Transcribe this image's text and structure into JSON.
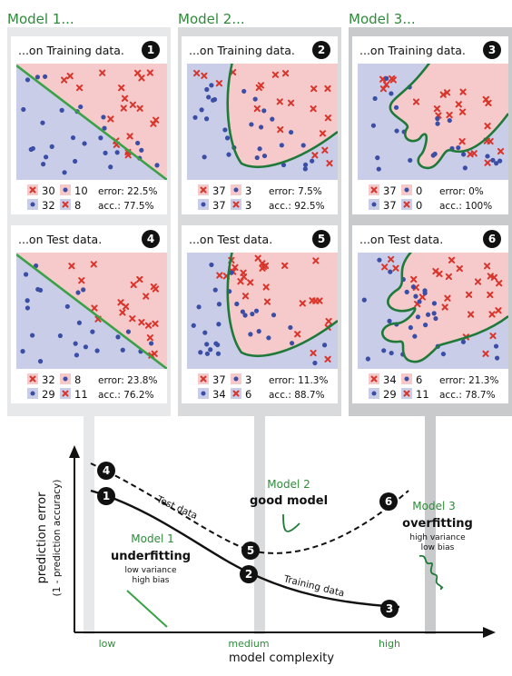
{
  "colors": {
    "green_title": "#2e8b3a",
    "green_line": "#3aa245",
    "dark_green": "#1f7a3a",
    "red": "#d8352b",
    "blue": "#3b4ea6",
    "pink_bg": "#f6c9cb",
    "blue_bg": "#c9cde8",
    "column_bg": "#e6e8e9",
    "column_bg3": "#c9cacb",
    "dark": "#111111"
  },
  "models": [
    {
      "title": "Model 1...",
      "train": {
        "heading": "...on Training data.",
        "num": "1",
        "red_a": "30",
        "red_b": "10",
        "blue_a": "32",
        "blue_b": "8",
        "err": "error: 22.5%",
        "acc": "acc.: 77.5%"
      },
      "test": {
        "heading": "...on Test data.",
        "num": "4",
        "red_a": "32",
        "red_b": "8",
        "blue_a": "29",
        "blue_b": "11",
        "err": "error: 23.8%",
        "acc": "acc.: 76.2%"
      }
    },
    {
      "title": "Model 2...",
      "train": {
        "heading": "...on Training data.",
        "num": "2",
        "red_a": "37",
        "red_b": "3",
        "blue_a": "37",
        "blue_b": "3",
        "err": "error: 7.5%",
        "acc": "acc.: 92.5%"
      },
      "test": {
        "heading": "...on Test data.",
        "num": "5",
        "red_a": "37",
        "red_b": "3",
        "blue_a": "34",
        "blue_b": "6",
        "err": "error: 11.3%",
        "acc": "acc.: 88.7%"
      }
    },
    {
      "title": "Model 3...",
      "train": {
        "heading": "...on Training data.",
        "num": "3",
        "red_a": "37",
        "red_b": "0",
        "blue_a": "37",
        "blue_b": "0",
        "err": "error: 0%",
        "acc": "acc.: 100%"
      },
      "test": {
        "heading": "...on Test data.",
        "num": "6",
        "red_a": "34",
        "red_b": "6",
        "blue_a": "29",
        "blue_b": "11",
        "err": "error: 21.3%",
        "acc": "acc.: 78.7%"
      }
    }
  ],
  "chart": {
    "ylabel": "prediction error",
    "ylabel2": "(1 - prediction accuracy)",
    "xlabel": "model complexity",
    "x_ticks": [
      "low",
      "medium",
      "high"
    ],
    "test_label": "Test data",
    "train_label": "Training data",
    "m1_name": "Model 1",
    "m1_kind": "underfitting",
    "m1_d1": "low variance",
    "m1_d2": "high bias",
    "m2_name": "Model 2",
    "m2_kind": "good model",
    "m3_name": "Model 3",
    "m3_kind": "overfitting",
    "m3_d1": "high variance",
    "m3_d2": "low bias",
    "markers": [
      "1",
      "2",
      "3",
      "4",
      "5",
      "6"
    ]
  }
}
